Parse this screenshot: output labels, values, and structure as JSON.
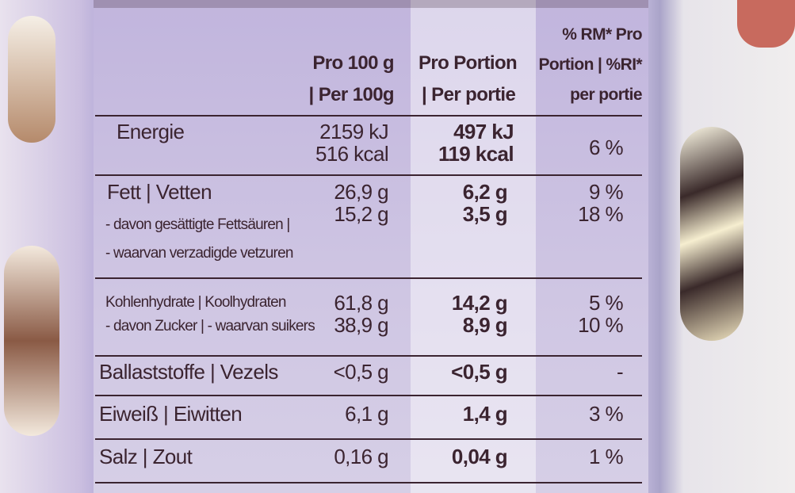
{
  "table": {
    "header": {
      "per100": [
        "Pro 100 g",
        "| Per 100g"
      ],
      "portion": [
        "Pro Portion",
        "| Per portie"
      ],
      "ri": [
        "% RM* Pro",
        "Portion | %RI*",
        "per portie"
      ]
    },
    "rows": [
      {
        "label": [
          "Energie"
        ],
        "per100": [
          "2159 kJ",
          "516 kcal"
        ],
        "portion": [
          "497 kJ",
          "119 kcal"
        ],
        "ri": [
          "6 %"
        ]
      },
      {
        "label": [
          "Fett | Vetten",
          "- davon gesättigte Fettsäuren |",
          "- waarvan verzadigde vetzuren"
        ],
        "per100": [
          "26,9 g",
          "15,2 g"
        ],
        "portion": [
          "6,2 g",
          "3,5 g"
        ],
        "ri": [
          "9 %",
          "18 %"
        ]
      },
      {
        "label": [
          "Kohlenhydrate | Koolhydraten",
          "- davon Zucker | - waarvan suikers"
        ],
        "per100": [
          "61,8 g",
          "38,9 g"
        ],
        "portion": [
          "14,2 g",
          "8,9 g"
        ],
        "ri": [
          "5 %",
          "10 %"
        ]
      },
      {
        "label": [
          "Ballaststoffe | Vezels"
        ],
        "per100": [
          "<0,5 g"
        ],
        "portion": [
          "<0,5 g"
        ],
        "ri": [
          "-"
        ]
      },
      {
        "label": [
          "Eiweiß | Eiwitten"
        ],
        "per100": [
          "6,1 g"
        ],
        "portion": [
          "1,4 g"
        ],
        "ri": [
          "3 %"
        ]
      },
      {
        "label": [
          "Salz | Zout"
        ],
        "per100": [
          "0,16 g"
        ],
        "portion": [
          "0,04 g"
        ],
        "ri": [
          "1 %"
        ]
      }
    ]
  }
}
